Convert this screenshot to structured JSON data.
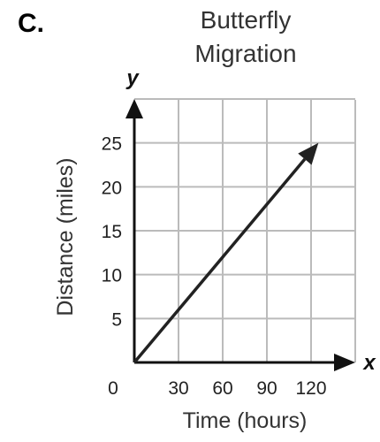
{
  "option_label": "C.",
  "chart_data": {
    "type": "line",
    "title_lines": [
      "Butterfly",
      "Migration"
    ],
    "xlabel": "Time (hours)",
    "ylabel": "Distance (miles)",
    "x_axis_letter": "x",
    "y_axis_letter": "y",
    "origin_label": "0",
    "xlim": [
      0,
      150
    ],
    "ylim": [
      0,
      30
    ],
    "x_ticks": [
      30,
      60,
      90,
      120
    ],
    "y_ticks": [
      5,
      10,
      15,
      20,
      25
    ],
    "grid": true,
    "series": [
      {
        "x": [
          0,
          125
        ],
        "y": [
          0,
          25
        ]
      }
    ],
    "colors": {
      "grid": "#bbbbbb",
      "axis": "#111111",
      "line": "#222222"
    }
  }
}
